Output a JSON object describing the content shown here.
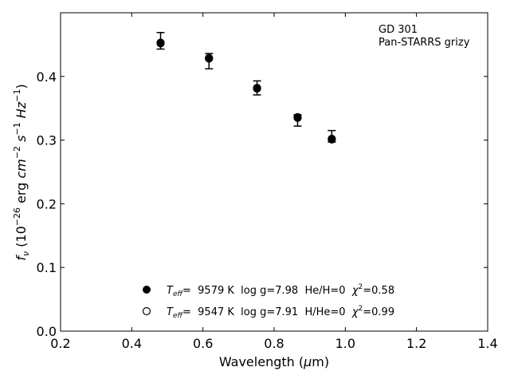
{
  "chart_data": {
    "type": "scatter",
    "annotation": [
      "GD 301",
      "Pan-STARRS grizy"
    ],
    "xlim": [
      0.2,
      1.4
    ],
    "ylim": [
      0.0,
      0.5
    ],
    "xticks": [
      0.2,
      0.4,
      0.6,
      0.8,
      1.0,
      1.2,
      1.4
    ],
    "yticks": [
      0.0,
      0.1,
      0.2,
      0.3,
      0.4
    ],
    "xtick_labels": [
      "0.2",
      "0.4",
      "0.6",
      "0.8",
      "1.0",
      "1.2",
      "1.4"
    ],
    "ytick_labels": [
      "0.0",
      "0.1",
      "0.2",
      "0.3",
      "0.4"
    ],
    "grid": false,
    "observed": {
      "x": [
        0.481,
        0.617,
        0.752,
        0.866,
        0.962
      ],
      "y": [
        0.456,
        0.424,
        0.382,
        0.331,
        0.306
      ],
      "yerr": [
        0.013,
        0.012,
        0.011,
        0.009,
        0.009
      ]
    },
    "series": [
      {
        "marker": "filled",
        "name_parts": {
          "teff_sub": "eff",
          "rest": "=  9579 K  log g=7.98  He/H=0  ",
          "chi_rest": "=0.58"
        },
        "x": [
          0.481,
          0.617,
          0.752,
          0.866,
          0.962
        ],
        "y": [
          0.453,
          0.429,
          0.382,
          0.336,
          0.302
        ]
      },
      {
        "marker": "open",
        "name_parts": {
          "teff_sub": "eff",
          "rest": "=  9547 K  log g=7.91  H/He=0  ",
          "chi_rest": "=0.99"
        },
        "x": [
          0.481,
          0.617,
          0.752,
          0.866,
          0.962
        ],
        "y": [
          0.452,
          0.428,
          0.381,
          0.335,
          0.301
        ]
      }
    ],
    "legend_position": "lower-center"
  }
}
